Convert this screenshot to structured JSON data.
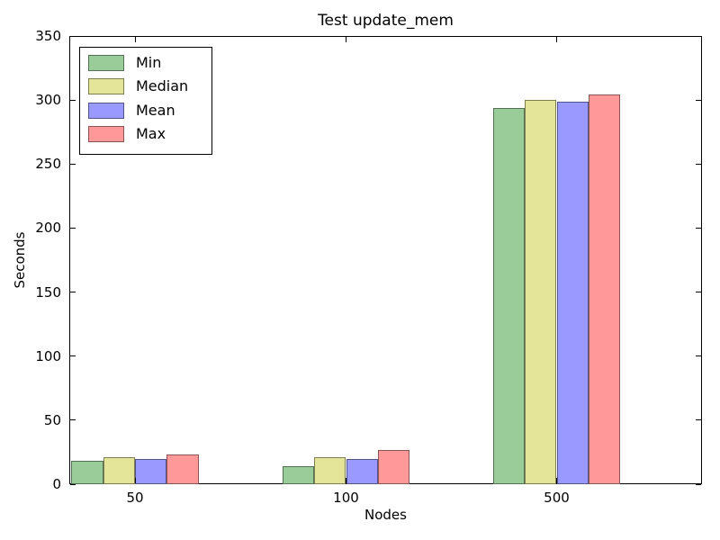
{
  "title": "Test update_mem",
  "axes": {
    "xlabel": "Nodes",
    "ylabel": "Seconds",
    "y_ticks": [
      0,
      50,
      100,
      150,
      200,
      250,
      300,
      350
    ],
    "x_tick_labels": [
      "50",
      "100",
      "500"
    ]
  },
  "legend": {
    "position": "upper left",
    "labels": [
      "Min",
      "Median",
      "Mean",
      "Max"
    ]
  },
  "chart_data": {
    "type": "bar",
    "title": "Test update_mem",
    "xlabel": "Nodes",
    "ylabel": "Seconds",
    "categories": [
      "50",
      "100",
      "500"
    ],
    "series": [
      {
        "name": "Min",
        "color": "#99cc99",
        "values": [
          18,
          14,
          294
        ]
      },
      {
        "name": "Median",
        "color": "#e5e599",
        "values": [
          21,
          21,
          300
        ]
      },
      {
        "name": "Mean",
        "color": "#9999ff",
        "values": [
          20,
          20,
          299
        ]
      },
      {
        "name": "Max",
        "color": "#ff9999",
        "values": [
          23,
          27,
          304
        ]
      }
    ],
    "ylim": [
      0,
      350
    ],
    "y_tick_step": 50,
    "grid": false,
    "legend_position": "upper left",
    "bar_edge_color": "rgba(0,0,0,0.45)",
    "axis_color": "#000000",
    "background_color": "#ffffff"
  }
}
